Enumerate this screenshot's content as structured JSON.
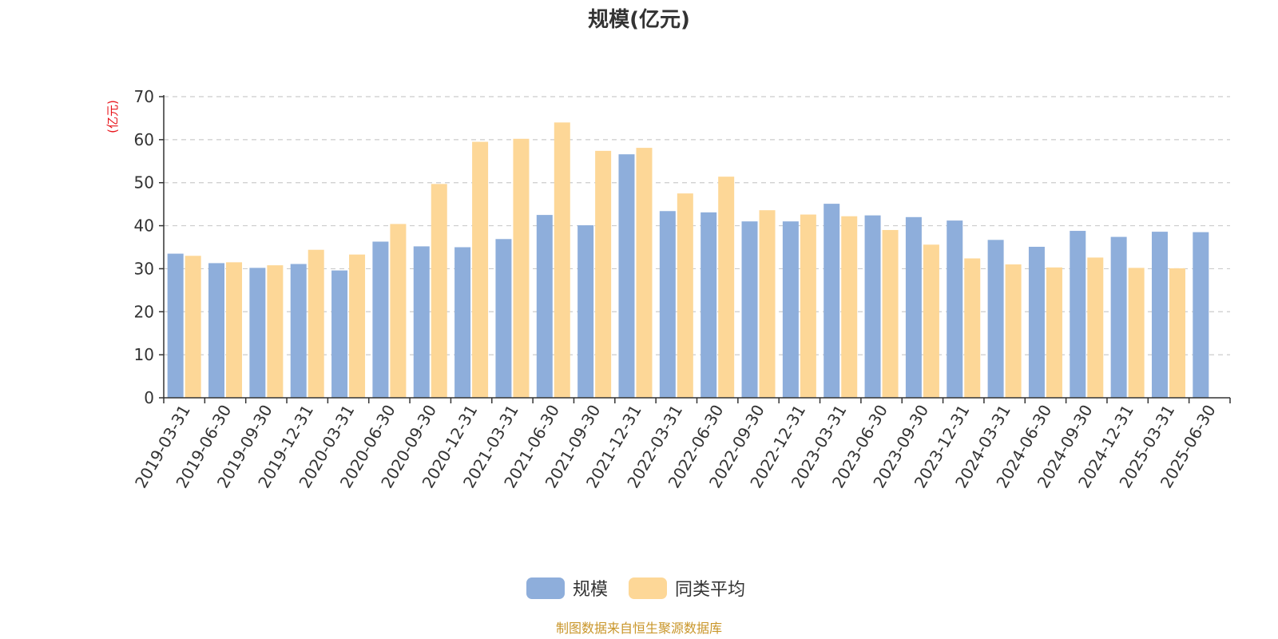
{
  "chart_data": {
    "type": "bar",
    "title": "规模(亿元)",
    "ylabel": "(亿元)",
    "ylim": [
      0,
      70
    ],
    "yticks": [
      0,
      10,
      20,
      30,
      40,
      50,
      60,
      70
    ],
    "grid": true,
    "legend_position": "bottom",
    "categories": [
      "2019-03-31",
      "2019-06-30",
      "2019-09-30",
      "2019-12-31",
      "2020-03-31",
      "2020-06-30",
      "2020-09-30",
      "2020-12-31",
      "2021-03-31",
      "2021-06-30",
      "2021-09-30",
      "2021-12-31",
      "2022-03-31",
      "2022-06-30",
      "2022-09-30",
      "2022-12-31",
      "2023-03-31",
      "2023-06-30",
      "2023-09-30",
      "2023-12-31",
      "2024-03-31",
      "2024-06-30",
      "2024-09-30",
      "2024-12-31",
      "2025-03-31",
      "2025-06-30"
    ],
    "series": [
      {
        "name": "规模",
        "color": "#8eaedb",
        "values": [
          33.5,
          31.3,
          30.2,
          31.1,
          29.6,
          36.3,
          35.2,
          35.0,
          36.9,
          42.5,
          40.1,
          56.6,
          43.4,
          43.1,
          41.0,
          41.0,
          45.1,
          42.4,
          42.0,
          41.2,
          36.7,
          35.1,
          38.8,
          37.4,
          38.6,
          38.5
        ]
      },
      {
        "name": "同类平均",
        "color": "#fdd797",
        "values": [
          33.0,
          31.5,
          30.8,
          34.4,
          33.3,
          40.4,
          49.7,
          59.5,
          60.2,
          64.0,
          57.4,
          58.1,
          47.5,
          51.4,
          43.6,
          42.6,
          42.2,
          39.0,
          35.6,
          32.4,
          31.0,
          30.3,
          32.6,
          30.2,
          30.1,
          null
        ]
      }
    ]
  },
  "source": {
    "text": "制图数据来自恒生聚源数据库",
    "color": "#c9962a"
  },
  "colors": {
    "axis": "#333333",
    "grid": "#cccccc",
    "unit_label": "#e8141b"
  }
}
